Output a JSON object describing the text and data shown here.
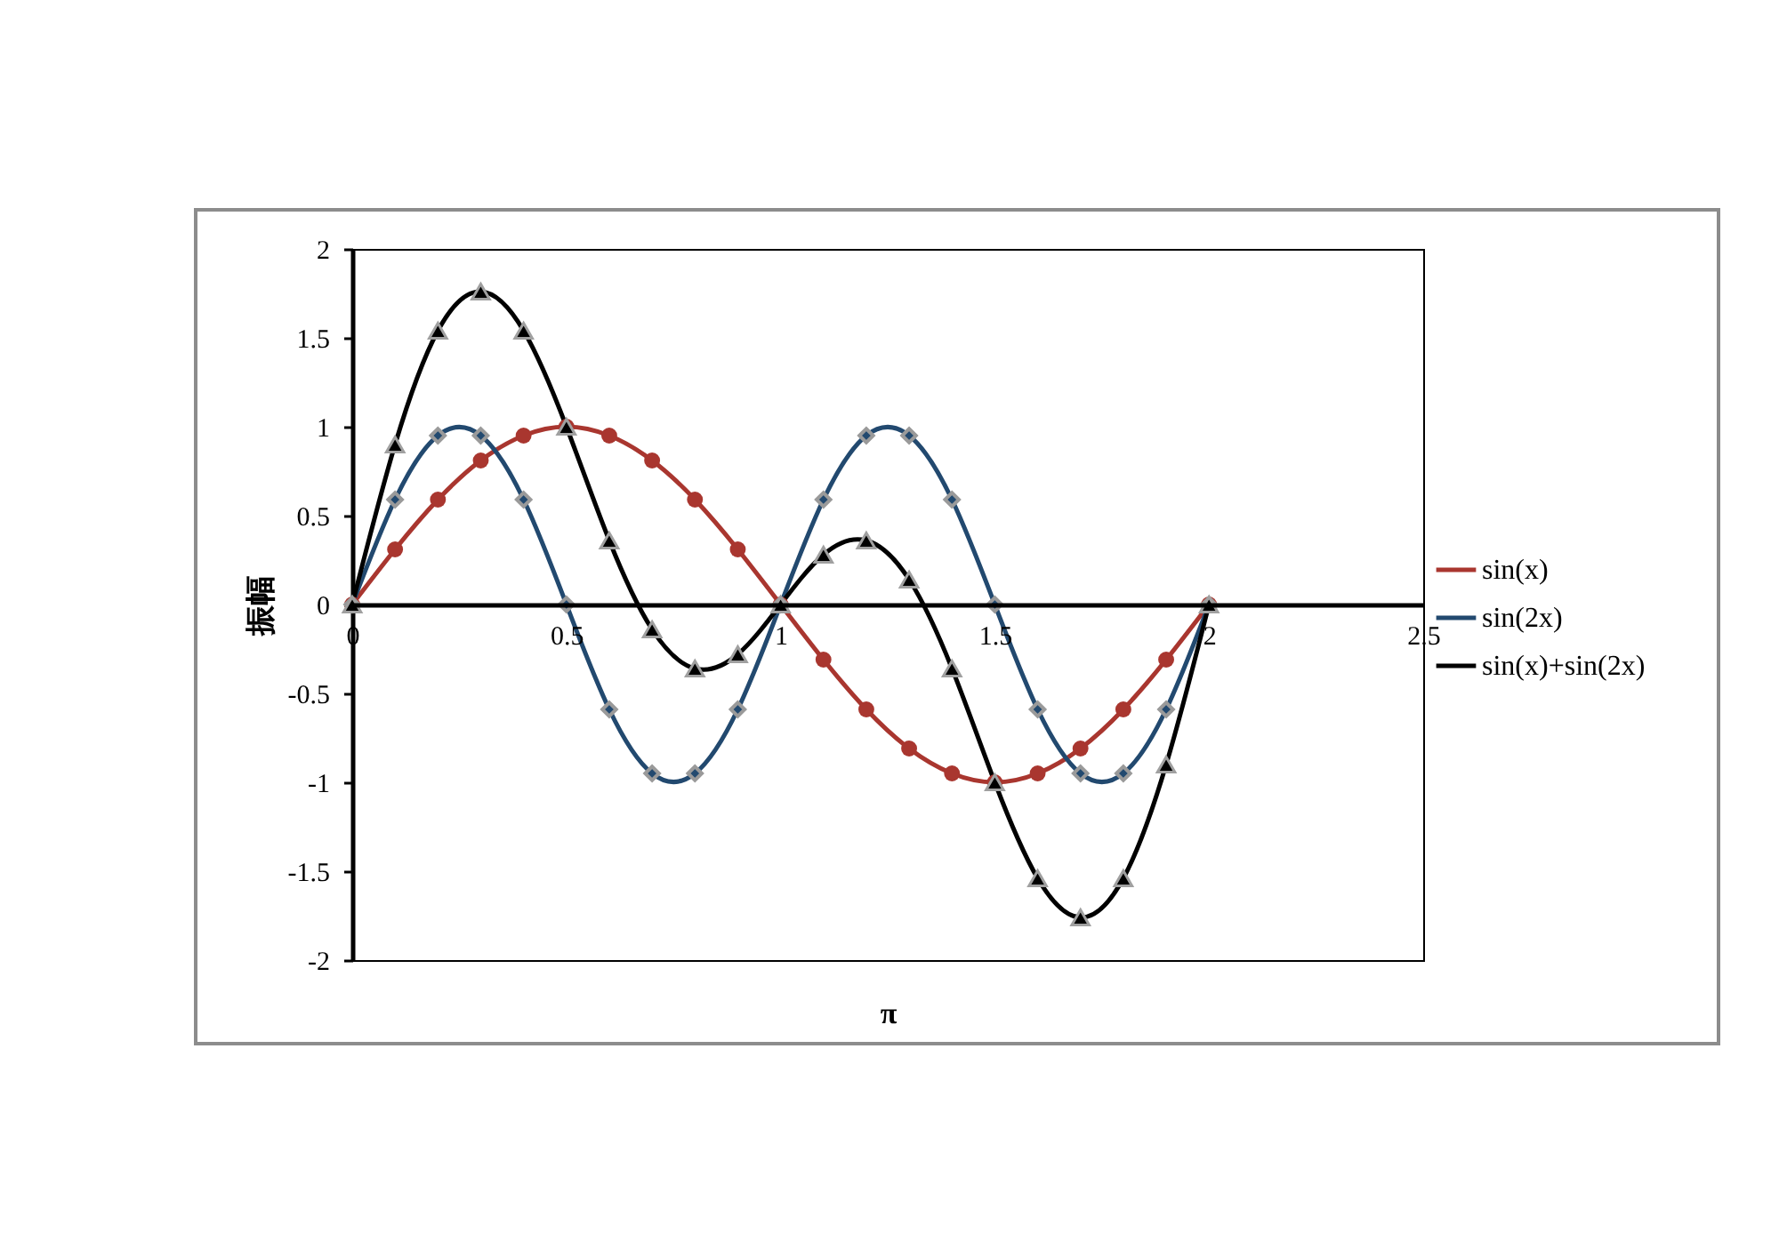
{
  "chart_data": {
    "type": "line",
    "xlabel": "π",
    "ylabel": "振幅",
    "x": [
      0,
      0.1,
      0.2,
      0.3,
      0.4,
      0.5,
      0.6,
      0.7,
      0.8,
      0.9,
      1,
      1.1,
      1.2,
      1.3,
      1.4,
      1.5,
      1.6,
      1.7,
      1.8,
      1.9,
      2
    ],
    "series": [
      {
        "name": "sin(x)",
        "color": "#a9362f",
        "marker": "circle",
        "values": [
          0,
          0.31,
          0.59,
          0.81,
          0.95,
          1,
          0.95,
          0.81,
          0.59,
          0.31,
          0,
          -0.31,
          -0.59,
          -0.81,
          -0.95,
          -1,
          -0.95,
          -0.81,
          -0.59,
          -0.31,
          0
        ]
      },
      {
        "name": "sin(2x)",
        "color": "#22496f",
        "marker": "diamond",
        "values": [
          0,
          0.59,
          0.95,
          0.95,
          0.59,
          0,
          -0.59,
          -0.95,
          -0.95,
          -0.59,
          0,
          0.59,
          0.95,
          0.95,
          0.59,
          0,
          -0.59,
          -0.95,
          -0.95,
          -0.59,
          0
        ]
      },
      {
        "name": "sin(x)+sin(2x)",
        "color": "#000000",
        "marker": "triangle",
        "values": [
          0,
          0.9,
          1.54,
          1.76,
          1.54,
          1,
          0.36,
          -0.14,
          -0.36,
          -0.28,
          0,
          0.28,
          0.36,
          0.14,
          -0.36,
          -1,
          -1.54,
          -1.76,
          -1.54,
          -0.9,
          0
        ]
      }
    ],
    "xlim": [
      0,
      2.5
    ],
    "xticks": [
      0,
      0.5,
      1,
      1.5,
      2,
      2.5
    ],
    "ylim": [
      -2,
      2
    ],
    "yticks": [
      -2,
      -1.5,
      -1,
      -0.5,
      0,
      0.5,
      1,
      1.5,
      2
    ],
    "grid": false,
    "legend": "right",
    "line_style": "solid"
  }
}
